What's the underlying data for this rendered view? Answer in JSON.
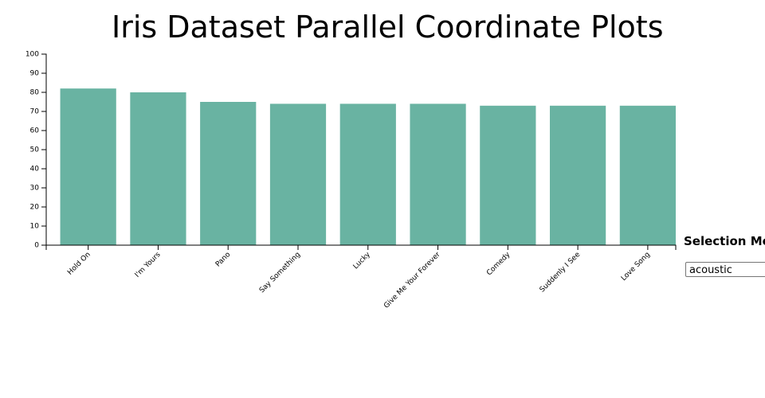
{
  "page": {
    "title": "Iris Dataset Parallel Coordinate Plots"
  },
  "selection": {
    "label": "Selection Me",
    "value": "acoustic"
  },
  "chart_data": {
    "type": "bar",
    "categories": [
      "Hold On",
      "I'm Yours",
      "Pano",
      "Say Something",
      "Lucky",
      "Give Me Your Forever",
      "Comedy",
      "Suddenly I See",
      "Love Song"
    ],
    "values": [
      82,
      80,
      75,
      74,
      74,
      74,
      73,
      73,
      73
    ],
    "ylim": [
      0,
      100
    ],
    "yticks": [
      0,
      10,
      20,
      30,
      40,
      50,
      60,
      70,
      80,
      90,
      100
    ],
    "bar_color": "#69b3a2",
    "grid": false
  }
}
